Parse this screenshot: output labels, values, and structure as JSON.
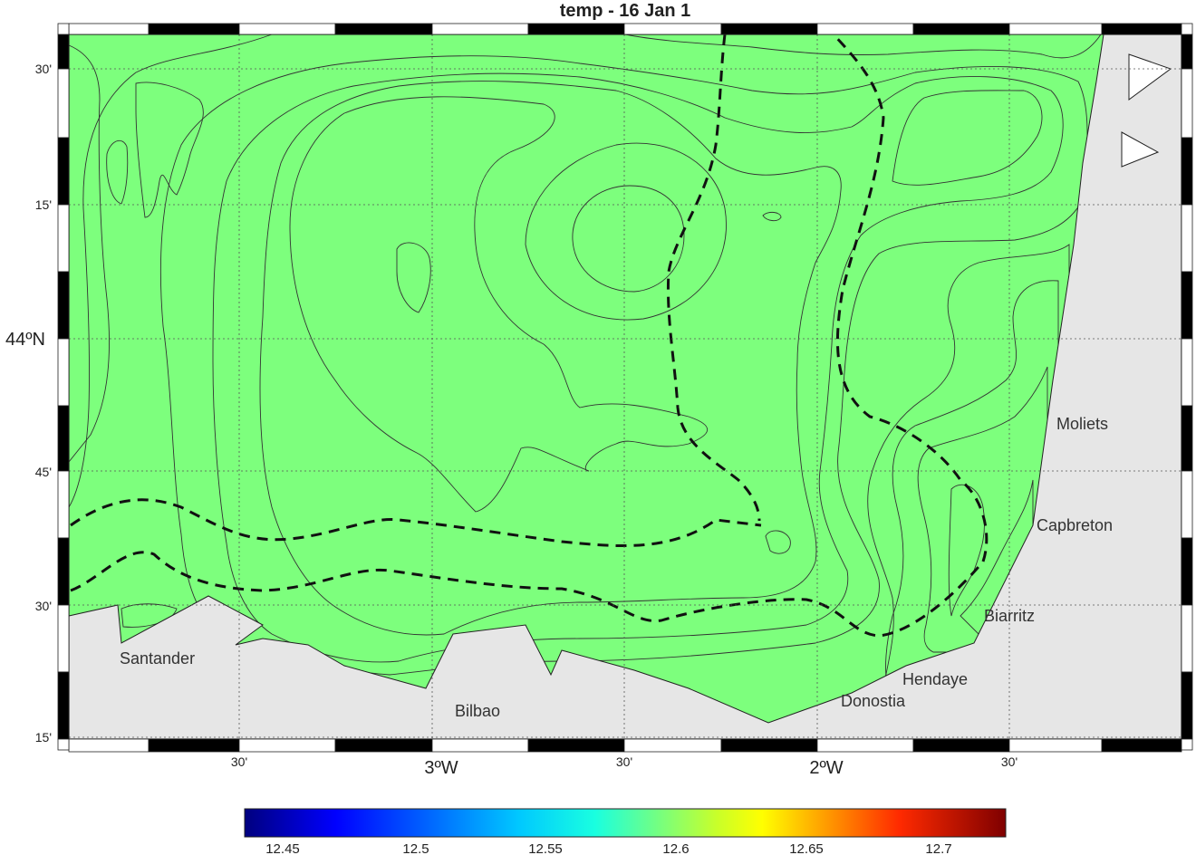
{
  "title": "temp - 16 Jan 1",
  "lat_labels": [
    "30'",
    "15'",
    "44ºN",
    "45'",
    "30'",
    "15'"
  ],
  "lon_labels": [
    "30'",
    "3ºW",
    "30'",
    "2ºW",
    "30'"
  ],
  "places": [
    "Moliets",
    "Capbreton",
    "Biarritz",
    "Hendaye",
    "Donostia",
    "Santander",
    "Bilbao"
  ],
  "colorbar": {
    "ticks": [
      "12.45",
      "12.5",
      "12.55",
      "12.6",
      "12.65",
      "12.7"
    ],
    "colormap": "jet",
    "range": [
      12.44,
      12.72
    ]
  },
  "colors": {
    "land": "#e6e6e6",
    "level_1": "#000f80",
    "level_2": "#0026d9",
    "level_3": "#0063f0",
    "level_4": "#00b5ff",
    "level_5": "#16f2e0",
    "level_6": "#7dff7d",
    "level_7": "#eaff17",
    "level_8": "#ffa600",
    "level_9": "#ff4a00",
    "level_10": "#e60000"
  }
}
